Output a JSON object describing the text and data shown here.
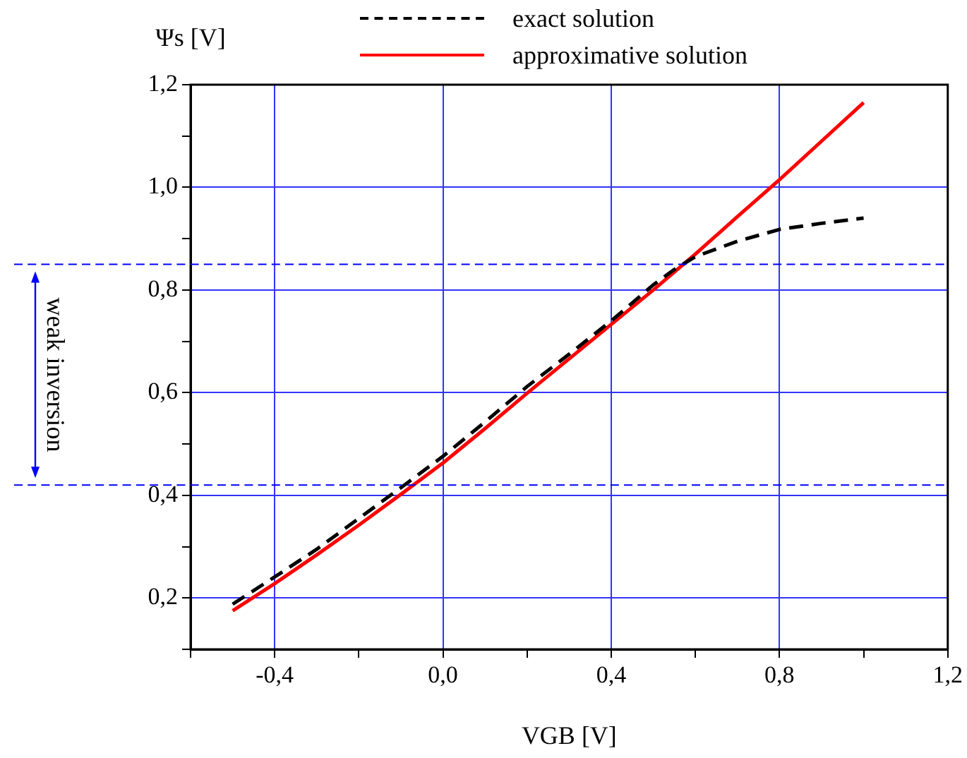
{
  "chart_data": {
    "type": "line",
    "ylabel": "Ψs [V]",
    "xlabel": "VGB [V]",
    "xlim": [
      -0.6,
      1.2
    ],
    "ylim": [
      0.1,
      1.2
    ],
    "xticks": [
      {
        "value": -0.6,
        "label": null
      },
      {
        "value": -0.4,
        "label": "-0,4"
      },
      {
        "value": -0.2,
        "label": null
      },
      {
        "value": 0,
        "label": "0,0"
      },
      {
        "value": 0.2,
        "label": null
      },
      {
        "value": 0.4,
        "label": "0,4"
      },
      {
        "value": 0.6,
        "label": null
      },
      {
        "value": 0.8,
        "label": "0,8"
      },
      {
        "value": 1.0,
        "label": null
      },
      {
        "value": 1.2,
        "label": "1,2"
      }
    ],
    "yticks": [
      {
        "value": 0.1,
        "label": null
      },
      {
        "value": 0.2,
        "label": "0,2"
      },
      {
        "value": 0.3,
        "label": null
      },
      {
        "value": 0.4,
        "label": "0,4"
      },
      {
        "value": 0.5,
        "label": null
      },
      {
        "value": 0.6,
        "label": "0,6"
      },
      {
        "value": 0.7,
        "label": null
      },
      {
        "value": 0.8,
        "label": "0,8"
      },
      {
        "value": 0.9,
        "label": null
      },
      {
        "value": 1.0,
        "label": "1,0"
      },
      {
        "value": 1.1,
        "label": null
      },
      {
        "value": 1.2,
        "label": "1,2"
      }
    ],
    "grid": true,
    "legend": "top",
    "marker": "none",
    "series": [
      {
        "name": "exact solution",
        "color": "#000000",
        "line_style": "dashed",
        "x": [
          -0.5,
          -0.4,
          -0.3,
          -0.2,
          -0.1,
          0,
          0.1,
          0.2,
          0.3,
          0.4,
          0.5,
          0.55,
          0.6,
          0.65,
          0.7,
          0.8,
          0.9,
          1.0
        ],
        "values": [
          0.188,
          0.241,
          0.295,
          0.355,
          0.415,
          0.476,
          0.543,
          0.612,
          0.675,
          0.74,
          0.81,
          0.84,
          0.865,
          0.88,
          0.895,
          0.918,
          0.93,
          0.94
        ]
      },
      {
        "name": "approximative solution",
        "color": "#ff0000",
        "line_style": "solid",
        "x": [
          -0.5,
          -0.4,
          -0.3,
          -0.2,
          -0.1,
          0,
          0.1,
          0.2,
          0.3,
          0.4,
          0.5,
          0.6,
          0.7,
          0.8,
          0.9,
          1.0
        ],
        "values": [
          0.175,
          0.228,
          0.284,
          0.342,
          0.402,
          0.463,
          0.53,
          0.599,
          0.666,
          0.733,
          0.8,
          0.87,
          0.943,
          1.015,
          1.09,
          1.165
        ]
      }
    ],
    "ref_lines": [
      {
        "axis": "y",
        "value": 0.85,
        "color": "#0000ff",
        "line_style": "dashed"
      },
      {
        "axis": "y",
        "value": 0.42,
        "color": "#0000ff",
        "line_style": "dashed"
      }
    ],
    "annotations": [
      "weak inversion"
    ]
  }
}
